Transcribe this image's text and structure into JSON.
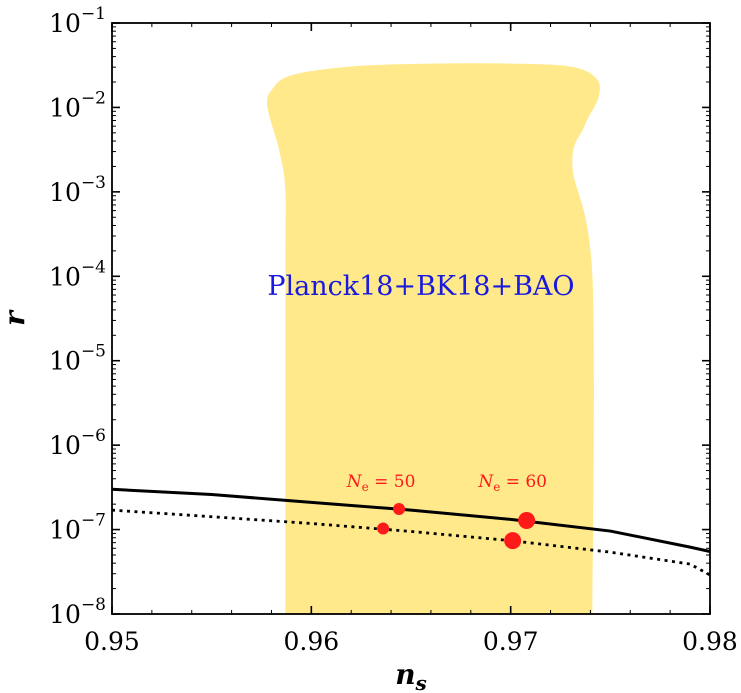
{
  "chart_data": {
    "type": "scatter",
    "title": "",
    "xlabel": "n",
    "xlabel_sub": "s",
    "ylabel": "r",
    "xlim": [
      0.95,
      0.98
    ],
    "ylim": [
      1e-08,
      0.1
    ],
    "yscale": "log",
    "grid": false,
    "x_ticks": [
      {
        "value": 0.95,
        "label": "0.95"
      },
      {
        "value": 0.96,
        "label": "0.96"
      },
      {
        "value": 0.97,
        "label": "0.97"
      },
      {
        "value": 0.98,
        "label": "0.98"
      }
    ],
    "y_ticks": [
      {
        "value": 1e-08,
        "base": "10",
        "exp": "−8"
      },
      {
        "value": 1e-07,
        "base": "10",
        "exp": "−7"
      },
      {
        "value": 1e-06,
        "base": "10",
        "exp": "−6"
      },
      {
        "value": 1e-05,
        "base": "10",
        "exp": "−5"
      },
      {
        "value": 0.0001,
        "base": "10",
        "exp": "−4"
      },
      {
        "value": 0.001,
        "base": "10",
        "exp": "−3"
      },
      {
        "value": 0.01,
        "base": "10",
        "exp": "−2"
      },
      {
        "value": 0.1,
        "base": "10",
        "exp": "−1"
      }
    ],
    "region": {
      "label": "Planck18+BK18+BAO",
      "color": "#ffe98a",
      "label_at": {
        "x": 0.9655,
        "y": 6e-05
      },
      "boundary": [
        [
          0.9587,
          1e-08
        ],
        [
          0.9587,
          0.0001
        ],
        [
          0.9587,
          0.001
        ],
        [
          0.9584,
          0.003
        ],
        [
          0.9578,
          0.01
        ],
        [
          0.958,
          0.016
        ],
        [
          0.959,
          0.024
        ],
        [
          0.962,
          0.0305
        ],
        [
          0.966,
          0.033
        ],
        [
          0.97,
          0.033
        ],
        [
          0.973,
          0.0305
        ],
        [
          0.9743,
          0.022
        ],
        [
          0.9744,
          0.013
        ],
        [
          0.9737,
          0.006
        ],
        [
          0.9731,
          0.002
        ],
        [
          0.9741,
          0.0001
        ],
        [
          0.9741,
          1e-08
        ]
      ]
    },
    "series": [
      {
        "style": "solid",
        "color": "#000000",
        "points": [
          [
            0.95,
            3e-07
          ],
          [
            0.955,
            2.6e-07
          ],
          [
            0.96,
            2.1e-07
          ],
          [
            0.965,
            1.7e-07
          ],
          [
            0.97,
            1.32e-07
          ],
          [
            0.975,
            9.6e-08
          ],
          [
            0.979,
            6.2e-08
          ],
          [
            0.98,
            5.5e-08
          ]
        ]
      },
      {
        "style": "dotted",
        "color": "#000000",
        "points": [
          [
            0.95,
            1.7e-07
          ],
          [
            0.955,
            1.42e-07
          ],
          [
            0.96,
            1.18e-07
          ],
          [
            0.965,
            9.5e-08
          ],
          [
            0.97,
            7.4e-08
          ],
          [
            0.975,
            5.4e-08
          ],
          [
            0.979,
            3.9e-08
          ],
          [
            0.98,
            2.9e-08
          ]
        ]
      }
    ],
    "points": [
      {
        "x": 0.9644,
        "y": 1.75e-07,
        "size": "small",
        "color": "#ff1a1a"
      },
      {
        "x": 0.9708,
        "y": 1.28e-07,
        "size": "large",
        "color": "#ff1a1a"
      },
      {
        "x": 0.9636,
        "y": 1.03e-07,
        "size": "small",
        "color": "#ff1a1a"
      },
      {
        "x": 0.9701,
        "y": 7.4e-08,
        "size": "large",
        "color": "#ff1a1a"
      }
    ],
    "annotations": [
      {
        "base": "N",
        "sub": "e",
        "rest": " = 50",
        "x": 0.9635,
        "y": 3.2e-07,
        "color": "#ff1a1a"
      },
      {
        "base": "N",
        "sub": "e",
        "rest": " = 60",
        "x": 0.9701,
        "y": 3.2e-07,
        "color": "#ff1a1a"
      }
    ]
  }
}
